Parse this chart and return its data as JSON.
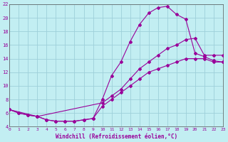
{
  "xlabel": "Windchill (Refroidissement éolien,°C)",
  "xlim": [
    0,
    23
  ],
  "ylim": [
    4,
    22
  ],
  "xticks": [
    0,
    1,
    2,
    3,
    4,
    5,
    6,
    7,
    8,
    9,
    10,
    11,
    12,
    13,
    14,
    15,
    16,
    17,
    18,
    19,
    20,
    21,
    22,
    23
  ],
  "yticks": [
    4,
    6,
    8,
    10,
    12,
    14,
    16,
    18,
    20,
    22
  ],
  "bg_color": "#c2eef2",
  "line_color": "#990099",
  "grid_color": "#9ecfda",
  "curve1_x": [
    0,
    1,
    2,
    3,
    4,
    5,
    6,
    7,
    8,
    9,
    10,
    11,
    12,
    13,
    14,
    15,
    16,
    17,
    18,
    19,
    20,
    21,
    22,
    23
  ],
  "curve1_y": [
    6.5,
    6.0,
    5.7,
    5.5,
    5.0,
    4.8,
    4.8,
    4.8,
    5.0,
    5.2,
    8.0,
    11.5,
    13.5,
    16.5,
    19.0,
    20.7,
    21.5,
    21.7,
    20.5,
    19.8,
    14.8,
    14.3,
    13.7,
    13.5
  ],
  "curve2_x": [
    0,
    3,
    10,
    11,
    12,
    13,
    14,
    15,
    16,
    17,
    18,
    19,
    20,
    21,
    22,
    23
  ],
  "curve2_y": [
    6.5,
    5.5,
    7.5,
    8.5,
    9.5,
    11.0,
    12.5,
    13.5,
    14.5,
    15.5,
    16.0,
    16.8,
    17.0,
    14.5,
    14.5,
    14.5
  ],
  "curve3_x": [
    0,
    1,
    2,
    3,
    4,
    5,
    6,
    7,
    8,
    9,
    10,
    11,
    12,
    13,
    14,
    15,
    16,
    17,
    18,
    19,
    20,
    21,
    22,
    23
  ],
  "curve3_y": [
    6.5,
    6.0,
    5.7,
    5.5,
    5.0,
    4.8,
    4.8,
    4.8,
    5.0,
    5.2,
    7.0,
    8.0,
    9.0,
    10.0,
    11.0,
    12.0,
    12.5,
    13.0,
    13.5,
    14.0,
    14.0,
    14.0,
    13.5,
    13.5
  ]
}
